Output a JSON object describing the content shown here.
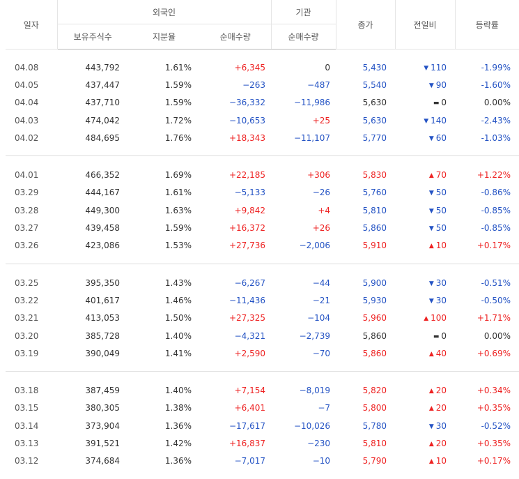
{
  "headers": {
    "date": "일자",
    "foreign": "외국인",
    "institution": "기관",
    "close": "종가",
    "change": "전일비",
    "rate": "등락률",
    "holdings": "보유주식수",
    "share": "지분율",
    "foreign_net": "순매수량",
    "inst_net": "순매수량"
  },
  "colors": {
    "up": "#e22222",
    "down": "#2453c4",
    "neutral": "#333333"
  },
  "groups": [
    [
      {
        "date": "04.08",
        "holdings": "443,792",
        "share": "1.61%",
        "foreign_net": "+6,345",
        "foreign_dir": "up",
        "inst_net": "0",
        "inst_dir": "ne",
        "close": "5,430",
        "close_dir": "dn",
        "mark": "▼",
        "change": "110",
        "change_dir": "dn",
        "rate": "-1.99%",
        "rate_dir": "dn"
      },
      {
        "date": "04.05",
        "holdings": "437,447",
        "share": "1.59%",
        "foreign_net": "−263",
        "foreign_dir": "dn",
        "inst_net": "−487",
        "inst_dir": "dn",
        "close": "5,540",
        "close_dir": "dn",
        "mark": "▼",
        "change": "90",
        "change_dir": "dn",
        "rate": "-1.60%",
        "rate_dir": "dn"
      },
      {
        "date": "04.04",
        "holdings": "437,710",
        "share": "1.59%",
        "foreign_net": "−36,332",
        "foreign_dir": "dn",
        "inst_net": "−11,986",
        "inst_dir": "dn",
        "close": "5,630",
        "close_dir": "ne",
        "mark": "▬",
        "change": "0",
        "change_dir": "ne",
        "rate": "0.00%",
        "rate_dir": "ne"
      },
      {
        "date": "04.03",
        "holdings": "474,042",
        "share": "1.72%",
        "foreign_net": "−10,653",
        "foreign_dir": "dn",
        "inst_net": "+25",
        "inst_dir": "up",
        "close": "5,630",
        "close_dir": "dn",
        "mark": "▼",
        "change": "140",
        "change_dir": "dn",
        "rate": "-2.43%",
        "rate_dir": "dn"
      },
      {
        "date": "04.02",
        "holdings": "484,695",
        "share": "1.76%",
        "foreign_net": "+18,343",
        "foreign_dir": "up",
        "inst_net": "−11,107",
        "inst_dir": "dn",
        "close": "5,770",
        "close_dir": "dn",
        "mark": "▼",
        "change": "60",
        "change_dir": "dn",
        "rate": "-1.03%",
        "rate_dir": "dn"
      }
    ],
    [
      {
        "date": "04.01",
        "holdings": "466,352",
        "share": "1.69%",
        "foreign_net": "+22,185",
        "foreign_dir": "up",
        "inst_net": "+306",
        "inst_dir": "up",
        "close": "5,830",
        "close_dir": "up",
        "mark": "▲",
        "change": "70",
        "change_dir": "up",
        "rate": "+1.22%",
        "rate_dir": "up"
      },
      {
        "date": "03.29",
        "holdings": "444,167",
        "share": "1.61%",
        "foreign_net": "−5,133",
        "foreign_dir": "dn",
        "inst_net": "−26",
        "inst_dir": "dn",
        "close": "5,760",
        "close_dir": "dn",
        "mark": "▼",
        "change": "50",
        "change_dir": "dn",
        "rate": "-0.86%",
        "rate_dir": "dn"
      },
      {
        "date": "03.28",
        "holdings": "449,300",
        "share": "1.63%",
        "foreign_net": "+9,842",
        "foreign_dir": "up",
        "inst_net": "+4",
        "inst_dir": "up",
        "close": "5,810",
        "close_dir": "dn",
        "mark": "▼",
        "change": "50",
        "change_dir": "dn",
        "rate": "-0.85%",
        "rate_dir": "dn"
      },
      {
        "date": "03.27",
        "holdings": "439,458",
        "share": "1.59%",
        "foreign_net": "+16,372",
        "foreign_dir": "up",
        "inst_net": "+26",
        "inst_dir": "up",
        "close": "5,860",
        "close_dir": "dn",
        "mark": "▼",
        "change": "50",
        "change_dir": "dn",
        "rate": "-0.85%",
        "rate_dir": "dn"
      },
      {
        "date": "03.26",
        "holdings": "423,086",
        "share": "1.53%",
        "foreign_net": "+27,736",
        "foreign_dir": "up",
        "inst_net": "−2,006",
        "inst_dir": "dn",
        "close": "5,910",
        "close_dir": "up",
        "mark": "▲",
        "change": "10",
        "change_dir": "up",
        "rate": "+0.17%",
        "rate_dir": "up"
      }
    ],
    [
      {
        "date": "03.25",
        "holdings": "395,350",
        "share": "1.43%",
        "foreign_net": "−6,267",
        "foreign_dir": "dn",
        "inst_net": "−44",
        "inst_dir": "dn",
        "close": "5,900",
        "close_dir": "dn",
        "mark": "▼",
        "change": "30",
        "change_dir": "dn",
        "rate": "-0.51%",
        "rate_dir": "dn"
      },
      {
        "date": "03.22",
        "holdings": "401,617",
        "share": "1.46%",
        "foreign_net": "−11,436",
        "foreign_dir": "dn",
        "inst_net": "−21",
        "inst_dir": "dn",
        "close": "5,930",
        "close_dir": "dn",
        "mark": "▼",
        "change": "30",
        "change_dir": "dn",
        "rate": "-0.50%",
        "rate_dir": "dn"
      },
      {
        "date": "03.21",
        "holdings": "413,053",
        "share": "1.50%",
        "foreign_net": "+27,325",
        "foreign_dir": "up",
        "inst_net": "−104",
        "inst_dir": "dn",
        "close": "5,960",
        "close_dir": "up",
        "mark": "▲",
        "change": "100",
        "change_dir": "up",
        "rate": "+1.71%",
        "rate_dir": "up"
      },
      {
        "date": "03.20",
        "holdings": "385,728",
        "share": "1.40%",
        "foreign_net": "−4,321",
        "foreign_dir": "dn",
        "inst_net": "−2,739",
        "inst_dir": "dn",
        "close": "5,860",
        "close_dir": "ne",
        "mark": "▬",
        "change": "0",
        "change_dir": "ne",
        "rate": "0.00%",
        "rate_dir": "ne"
      },
      {
        "date": "03.19",
        "holdings": "390,049",
        "share": "1.41%",
        "foreign_net": "+2,590",
        "foreign_dir": "up",
        "inst_net": "−70",
        "inst_dir": "dn",
        "close": "5,860",
        "close_dir": "up",
        "mark": "▲",
        "change": "40",
        "change_dir": "up",
        "rate": "+0.69%",
        "rate_dir": "up"
      }
    ],
    [
      {
        "date": "03.18",
        "holdings": "387,459",
        "share": "1.40%",
        "foreign_net": "+7,154",
        "foreign_dir": "up",
        "inst_net": "−8,019",
        "inst_dir": "dn",
        "close": "5,820",
        "close_dir": "up",
        "mark": "▲",
        "change": "20",
        "change_dir": "up",
        "rate": "+0.34%",
        "rate_dir": "up"
      },
      {
        "date": "03.15",
        "holdings": "380,305",
        "share": "1.38%",
        "foreign_net": "+6,401",
        "foreign_dir": "up",
        "inst_net": "−7",
        "inst_dir": "dn",
        "close": "5,800",
        "close_dir": "up",
        "mark": "▲",
        "change": "20",
        "change_dir": "up",
        "rate": "+0.35%",
        "rate_dir": "up"
      },
      {
        "date": "03.14",
        "holdings": "373,904",
        "share": "1.36%",
        "foreign_net": "−17,617",
        "foreign_dir": "dn",
        "inst_net": "−10,026",
        "inst_dir": "dn",
        "close": "5,780",
        "close_dir": "dn",
        "mark": "▼",
        "change": "30",
        "change_dir": "dn",
        "rate": "-0.52%",
        "rate_dir": "dn"
      },
      {
        "date": "03.13",
        "holdings": "391,521",
        "share": "1.42%",
        "foreign_net": "+16,837",
        "foreign_dir": "up",
        "inst_net": "−230",
        "inst_dir": "dn",
        "close": "5,810",
        "close_dir": "up",
        "mark": "▲",
        "change": "20",
        "change_dir": "up",
        "rate": "+0.35%",
        "rate_dir": "up"
      },
      {
        "date": "03.12",
        "holdings": "374,684",
        "share": "1.36%",
        "foreign_net": "−7,017",
        "foreign_dir": "dn",
        "inst_net": "−10",
        "inst_dir": "dn",
        "close": "5,790",
        "close_dir": "up",
        "mark": "▲",
        "change": "10",
        "change_dir": "up",
        "rate": "+0.17%",
        "rate_dir": "up"
      }
    ]
  ]
}
